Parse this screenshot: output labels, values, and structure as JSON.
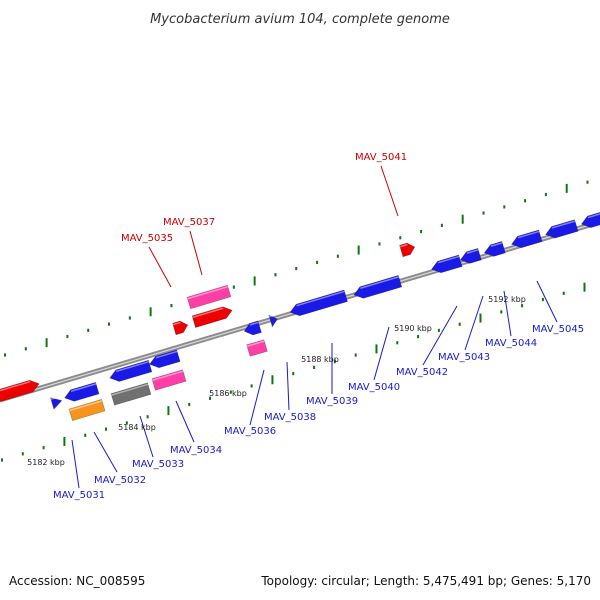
{
  "title": "Mycobacterium avium 104, complete genome",
  "footer": {
    "accession": "Accession: NC_008595",
    "info": "Topology: circular; Length: 5,475,491 bp; Genes: 5,170"
  },
  "colors": {
    "forward_strand": "#ee0000",
    "reverse_strand": "#1a1ae6",
    "rna": "#ff3fa8",
    "orange": "#f7941d",
    "gray": "#707070",
    "backbone": "#8c8c8c",
    "tick": "#0a7a0a",
    "forward_label": "#cc0000",
    "reverse_label": "#1a1acc"
  },
  "genes": [
    {
      "id": "MAV_5031",
      "label": "MAV_5031",
      "strand": "-",
      "color": "#1a1ae6",
      "shape": "arrow"
    },
    {
      "id": "MAV_5032",
      "label": "MAV_5032",
      "strand": "-",
      "color": "#f7941d",
      "shape": "box"
    },
    {
      "id": "MAV_5033",
      "label": "MAV_5033",
      "strand": "-",
      "color": "#707070",
      "shape": "box"
    },
    {
      "id": "MAV_5034",
      "label": "MAV_5034",
      "strand": "-",
      "color": "#ff3fa8",
      "shape": "box"
    },
    {
      "id": "MAV_5035",
      "label": "MAV_5035",
      "strand": "+",
      "color": "#ee0000",
      "shape": "arrow"
    },
    {
      "id": "MAV_5036",
      "label": "MAV_5036",
      "strand": "-",
      "color": "#ff3fa8",
      "shape": "box"
    },
    {
      "id": "MAV_5037",
      "label": "MAV_5037",
      "strand": "+",
      "color": "#ff3fa8",
      "shape": "box"
    },
    {
      "id": "MAV_5038",
      "label": "MAV_5038",
      "strand": "-",
      "color": "#1a1ae6",
      "shape": "arrow"
    },
    {
      "id": "MAV_5039",
      "label": "MAV_5039",
      "strand": "-",
      "color": "#1a1ae6",
      "shape": "arrow"
    },
    {
      "id": "MAV_5040",
      "label": "MAV_5040",
      "strand": "-",
      "color": "#1a1ae6",
      "shape": "arrow"
    },
    {
      "id": "MAV_5041",
      "label": "MAV_5041",
      "strand": "+",
      "color": "#ee0000",
      "shape": "arrow"
    },
    {
      "id": "MAV_5042",
      "label": "MAV_5042",
      "strand": "-",
      "color": "#1a1ae6",
      "shape": "arrow"
    },
    {
      "id": "MAV_5043",
      "label": "MAV_5043",
      "strand": "-",
      "color": "#1a1ae6",
      "shape": "arrow"
    },
    {
      "id": "MAV_5044",
      "label": "MAV_5044",
      "strand": "-",
      "color": "#1a1ae6",
      "shape": "arrow"
    },
    {
      "id": "MAV_5045",
      "label": "MAV_5045",
      "strand": "-",
      "color": "#1a1ae6",
      "shape": "arrow"
    }
  ],
  "scale_labels": [
    "5182 kbp",
    "5184 kbp",
    "5186 kbp",
    "5188 kbp",
    "5190 kbp",
    "5192 kbp"
  ]
}
